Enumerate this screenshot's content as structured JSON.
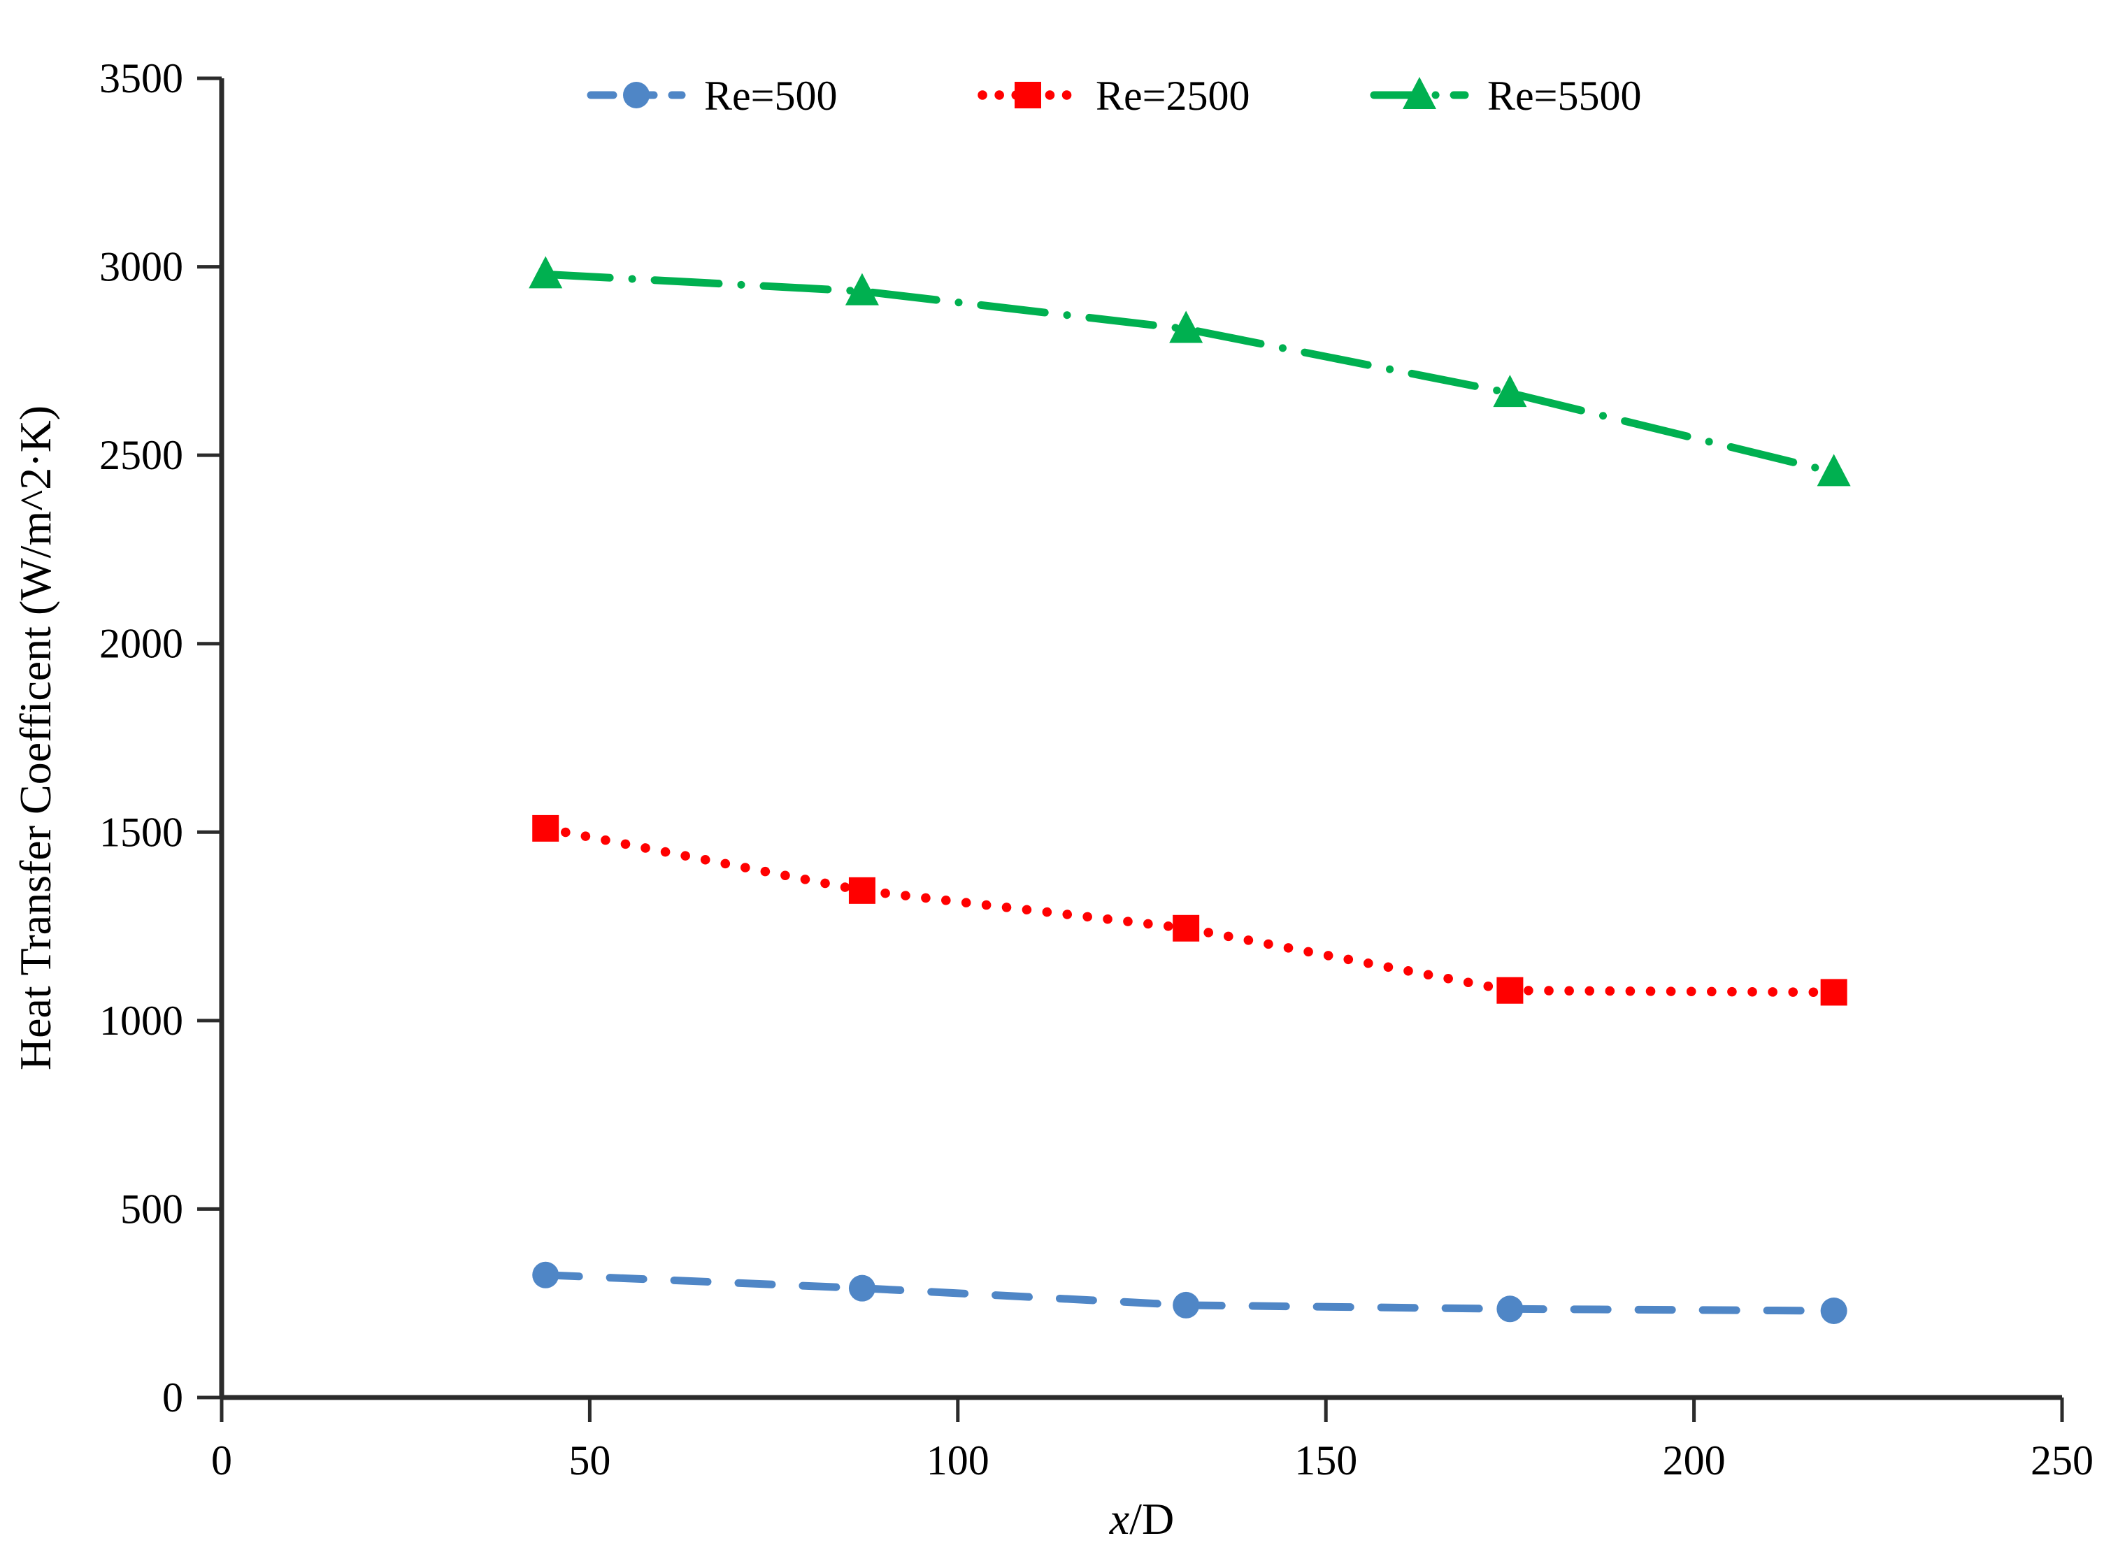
{
  "chart_data": {
    "type": "line",
    "title": "",
    "xlabel": "x/D",
    "ylabel": "Heat Transfer Coefficent (W/m^2·K)",
    "xlim": [
      0,
      250
    ],
    "ylim": [
      0,
      3500
    ],
    "xticks": [
      0,
      50,
      100,
      150,
      200,
      250
    ],
    "yticks": [
      0,
      500,
      1000,
      1500,
      2000,
      2500,
      3000,
      3500
    ],
    "grid": false,
    "legend_position": "top",
    "x": [
      44,
      87,
      131,
      175,
      219
    ],
    "series": [
      {
        "name": "Re=500",
        "color": "#4F86C6",
        "marker": "circle",
        "linestyle": "dashed",
        "values": [
          325,
          290,
          245,
          235,
          230
        ]
      },
      {
        "name": "Re=2500",
        "color": "#FF0000",
        "marker": "square",
        "linestyle": "dotted",
        "values": [
          1510,
          1345,
          1245,
          1080,
          1075
        ]
      },
      {
        "name": "Re=5500",
        "color": "#00B050",
        "marker": "triangle",
        "linestyle": "dashdot",
        "values": [
          2980,
          2935,
          2835,
          2665,
          2455
        ]
      }
    ]
  },
  "axis_color": "#2b2b2b",
  "text_color": "#000000"
}
